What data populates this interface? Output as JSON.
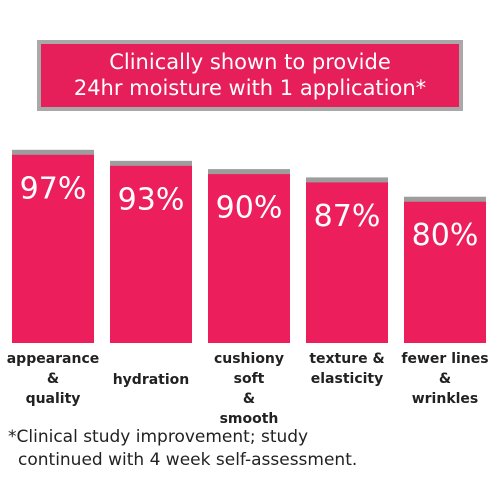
{
  "chart_data": {
    "type": "bar",
    "title": [
      "Clinically shown to provide",
      "24hr moisture with 1 application*"
    ],
    "categories": [
      [
        "appearance",
        "&",
        "quality"
      ],
      [
        "hydration"
      ],
      [
        "cushiony",
        "soft",
        "&",
        "smooth"
      ],
      [
        "texture &",
        "elasticity"
      ],
      [
        "fewer lines",
        "&",
        "wrinkles"
      ]
    ],
    "values": [
      97,
      93,
      90,
      87,
      80
    ],
    "value_labels": [
      "97%",
      "93%",
      "90%",
      "87%",
      "80%"
    ],
    "color": "#ec1f5c",
    "footnote": [
      "*Clinical study improvement; study",
      "continued with 4 week self-assessment."
    ]
  }
}
